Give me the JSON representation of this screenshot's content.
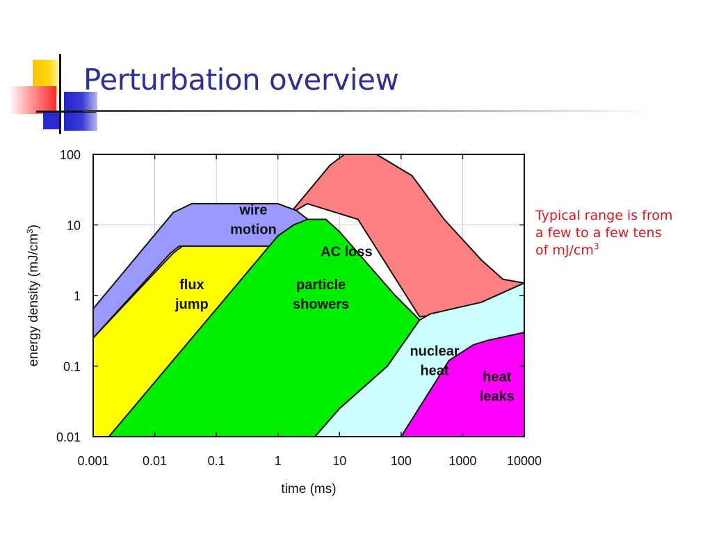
{
  "slide": {
    "title": "Perturbation overview",
    "note_text": "Typical range is from a few to a few tens of mJ/cm",
    "note_sup": "3"
  },
  "chart_data": {
    "type": "area",
    "title": "",
    "xlabel": "time (ms)",
    "ylabel": "energy density (mJ/cm",
    "ylabel_sup": "3",
    "ylabel_close": ")",
    "x_scale": "log",
    "y_scale": "log",
    "xlim": [
      0.001,
      10000
    ],
    "ylim": [
      0.01,
      100
    ],
    "x_ticks": [
      0.001,
      0.01,
      0.1,
      1,
      10,
      100,
      1000,
      10000
    ],
    "x_tick_labels": [
      "0.001",
      "0.01",
      "0.1",
      "1",
      "10",
      "100",
      "1000",
      "10000"
    ],
    "y_ticks": [
      0.01,
      0.1,
      1,
      10,
      100
    ],
    "y_tick_labels": [
      "0.01",
      "0.1",
      "1",
      "10",
      "100"
    ],
    "grid": true,
    "legend": "none",
    "regions": [
      {
        "name": "AC loss",
        "lines": [
          "AC loss"
        ],
        "color": "#ff8080",
        "label_at": [
          13,
          4.2
        ],
        "polygon": [
          [
            1.3,
            12
          ],
          [
            7,
            70
          ],
          [
            12,
            100
          ],
          [
            40,
            100
          ],
          [
            150,
            50
          ],
          [
            500,
            12
          ],
          [
            2000,
            3.2
          ],
          [
            4500,
            1.7
          ],
          [
            10000,
            1.5
          ],
          [
            10000,
            1.5
          ],
          [
            2000,
            0.8
          ],
          [
            1000,
            0.6
          ],
          [
            200,
            0.5
          ],
          [
            20,
            12
          ],
          [
            3,
            20
          ],
          [
            1.7,
            15
          ]
        ]
      },
      {
        "name": "wire motion",
        "lines": [
          "wire",
          "motion"
        ],
        "color": "#9999ff",
        "label_at": [
          0.4,
          12
        ],
        "polygon": [
          [
            0.001,
            0.3
          ],
          [
            0.001,
            0.65
          ],
          [
            0.02,
            15
          ],
          [
            0.04,
            20
          ],
          [
            1,
            20
          ],
          [
            2,
            16
          ],
          [
            4,
            10
          ],
          [
            0.8,
            5
          ],
          [
            0.025,
            5
          ],
          [
            0.018,
            4
          ],
          [
            0.001,
            0.25
          ]
        ]
      },
      {
        "name": "flux jump",
        "lines": [
          "flux",
          "jump"
        ],
        "color": "#ffff00",
        "label_at": [
          0.04,
          1.05
        ],
        "polygon": [
          [
            0.001,
            0.25
          ],
          [
            0.02,
            4
          ],
          [
            0.028,
            5
          ],
          [
            0.8,
            5
          ],
          [
            0.002,
            0.01
          ],
          [
            0.001,
            0.01
          ]
        ]
      },
      {
        "name": "particle showers",
        "lines": [
          "particle",
          "showers"
        ],
        "color": "#00ee00",
        "label_at": [
          5,
          1.05
        ],
        "polygon": [
          [
            0.0018,
            0.01
          ],
          [
            1,
            7
          ],
          [
            1.8,
            10
          ],
          [
            3,
            12
          ],
          [
            6,
            12
          ],
          [
            10,
            8
          ],
          [
            80,
            1
          ],
          [
            200,
            0.45
          ],
          [
            60,
            0.1
          ],
          [
            10,
            0.025
          ],
          [
            4,
            0.01
          ]
        ]
      },
      {
        "name": "nuclear heat",
        "lines": [
          "nuclear",
          "heat"
        ],
        "color": "#ccffff",
        "label_at": [
          350,
          0.12
        ],
        "polygon": [
          [
            4,
            0.01
          ],
          [
            10,
            0.025
          ],
          [
            60,
            0.1
          ],
          [
            200,
            0.45
          ],
          [
            300,
            0.55
          ],
          [
            2000,
            0.8
          ],
          [
            10000,
            1.5
          ],
          [
            10000,
            0.3
          ],
          [
            2500,
            0.23
          ],
          [
            1500,
            0.2
          ],
          [
            600,
            0.12
          ],
          [
            100,
            0.01
          ]
        ]
      },
      {
        "name": "heat leaks",
        "lines": [
          "heat",
          "leaks"
        ],
        "color": "#ff00ff",
        "label_at": [
          3600,
          0.052
        ],
        "polygon": [
          [
            100,
            0.01
          ],
          [
            600,
            0.12
          ],
          [
            1500,
            0.2
          ],
          [
            2500,
            0.23
          ],
          [
            10000,
            0.3
          ],
          [
            10000,
            0.01
          ]
        ]
      }
    ]
  }
}
